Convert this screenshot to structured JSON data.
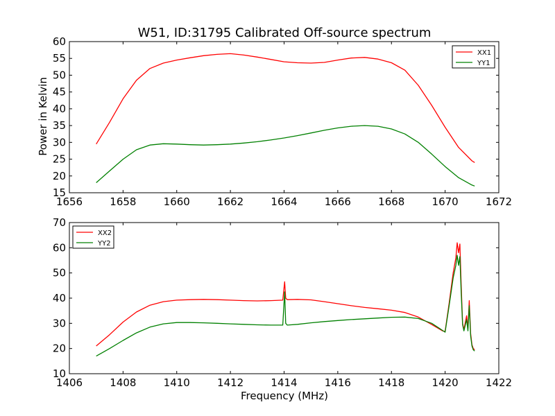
{
  "chart_data": [
    {
      "type": "line",
      "title": "W51, ID:31795 Calibrated Off-source spectrum",
      "xlabel": "",
      "ylabel": "Power in Kelvin",
      "xlim": [
        1656,
        1672
      ],
      "ylim": [
        15,
        60
      ],
      "xticks": [
        "1656",
        "1658",
        "1660",
        "1662",
        "1664",
        "1666",
        "1668",
        "1670",
        "1672"
      ],
      "yticks": [
        "15",
        "20",
        "25",
        "30",
        "35",
        "40",
        "45",
        "50",
        "55",
        "60"
      ],
      "legend_position": "top-right",
      "series": [
        {
          "name": "XX1",
          "color": "#ff0000",
          "x": [
            1657.0,
            1657.5,
            1658.0,
            1658.5,
            1659.0,
            1659.5,
            1660.0,
            1660.5,
            1661.0,
            1661.5,
            1662.0,
            1662.5,
            1663.0,
            1663.5,
            1664.0,
            1664.5,
            1665.0,
            1665.5,
            1666.0,
            1666.5,
            1667.0,
            1667.5,
            1668.0,
            1668.5,
            1669.0,
            1669.5,
            1670.0,
            1670.5,
            1671.0,
            1671.1
          ],
          "y": [
            29.5,
            36.0,
            43.0,
            48.5,
            52.0,
            53.6,
            54.5,
            55.2,
            55.8,
            56.2,
            56.4,
            56.0,
            55.4,
            54.7,
            54.0,
            53.7,
            53.6,
            53.8,
            54.5,
            55.1,
            55.3,
            54.8,
            53.7,
            51.5,
            47.0,
            41.0,
            34.5,
            28.5,
            24.5,
            24.0
          ]
        },
        {
          "name": "YY1",
          "color": "#008000",
          "x": [
            1657.0,
            1657.5,
            1658.0,
            1658.5,
            1659.0,
            1659.5,
            1660.0,
            1660.5,
            1661.0,
            1661.5,
            1662.0,
            1662.5,
            1663.0,
            1663.5,
            1664.0,
            1664.5,
            1665.0,
            1665.5,
            1666.0,
            1666.5,
            1667.0,
            1667.5,
            1668.0,
            1668.5,
            1669.0,
            1669.5,
            1670.0,
            1670.5,
            1671.0,
            1671.1
          ],
          "y": [
            18.0,
            21.5,
            25.0,
            27.8,
            29.2,
            29.6,
            29.5,
            29.3,
            29.2,
            29.3,
            29.5,
            29.8,
            30.2,
            30.7,
            31.3,
            32.0,
            32.8,
            33.6,
            34.3,
            34.8,
            35.0,
            34.8,
            34.0,
            32.5,
            30.0,
            26.5,
            22.8,
            19.5,
            17.3,
            17.0
          ]
        }
      ]
    },
    {
      "type": "line",
      "title": "",
      "xlabel": "Frequency (MHz)",
      "ylabel": "",
      "xlim": [
        1406,
        1422
      ],
      "ylim": [
        10,
        70
      ],
      "xticks": [
        "1406",
        "1408",
        "1410",
        "1412",
        "1414",
        "1416",
        "1418",
        "1420",
        "1422"
      ],
      "yticks": [
        "10",
        "20",
        "30",
        "40",
        "50",
        "60",
        "70"
      ],
      "legend_position": "top-left",
      "series": [
        {
          "name": "XX2",
          "color": "#ff0000",
          "x": [
            1407.0,
            1407.5,
            1408.0,
            1408.5,
            1409.0,
            1409.5,
            1410.0,
            1410.5,
            1411.0,
            1411.5,
            1412.0,
            1412.5,
            1413.0,
            1413.5,
            1413.95,
            1414.02,
            1414.06,
            1414.12,
            1414.5,
            1415.0,
            1415.5,
            1416.0,
            1416.5,
            1417.0,
            1417.5,
            1418.0,
            1418.5,
            1419.0,
            1419.5,
            1419.9,
            1420.0,
            1420.15,
            1420.3,
            1420.4,
            1420.45,
            1420.5,
            1420.55,
            1420.6,
            1420.65,
            1420.7,
            1420.8,
            1420.85,
            1420.9,
            1420.95,
            1421.0,
            1421.05,
            1421.1
          ],
          "y": [
            21.0,
            25.5,
            30.5,
            34.5,
            37.2,
            38.6,
            39.2,
            39.4,
            39.5,
            39.4,
            39.2,
            39.0,
            38.9,
            39.0,
            39.2,
            46.5,
            40.0,
            39.4,
            39.5,
            39.3,
            38.6,
            37.8,
            37.0,
            36.3,
            35.8,
            35.2,
            34.3,
            32.5,
            29.5,
            27.0,
            26.8,
            38.0,
            50.0,
            56.0,
            62.0,
            58.0,
            61.5,
            45.0,
            30.0,
            27.5,
            33.0,
            28.0,
            39.0,
            26.0,
            21.5,
            20.0,
            19.5
          ]
        },
        {
          "name": "YY2",
          "color": "#008000",
          "x": [
            1407.0,
            1407.5,
            1408.0,
            1408.5,
            1409.0,
            1409.5,
            1410.0,
            1410.5,
            1411.0,
            1411.5,
            1412.0,
            1412.5,
            1413.0,
            1413.5,
            1413.95,
            1414.02,
            1414.06,
            1414.12,
            1414.5,
            1415.0,
            1415.5,
            1416.0,
            1416.5,
            1417.0,
            1417.5,
            1418.0,
            1418.5,
            1419.0,
            1419.5,
            1419.9,
            1420.0,
            1420.15,
            1420.3,
            1420.4,
            1420.45,
            1420.5,
            1420.55,
            1420.6,
            1420.65,
            1420.7,
            1420.8,
            1420.85,
            1420.9,
            1420.95,
            1421.0,
            1421.05,
            1421.1
          ],
          "y": [
            17.0,
            20.0,
            23.2,
            26.2,
            28.5,
            29.8,
            30.3,
            30.3,
            30.2,
            30.0,
            29.8,
            29.6,
            29.4,
            29.3,
            29.3,
            42.5,
            30.0,
            29.3,
            29.6,
            30.2,
            30.7,
            31.1,
            31.5,
            31.8,
            32.1,
            32.4,
            32.5,
            31.9,
            30.0,
            27.2,
            26.5,
            37.0,
            48.0,
            53.0,
            57.0,
            53.0,
            56.5,
            42.0,
            29.5,
            27.0,
            31.5,
            27.0,
            37.0,
            25.0,
            21.0,
            19.5,
            19.0
          ]
        }
      ]
    }
  ]
}
